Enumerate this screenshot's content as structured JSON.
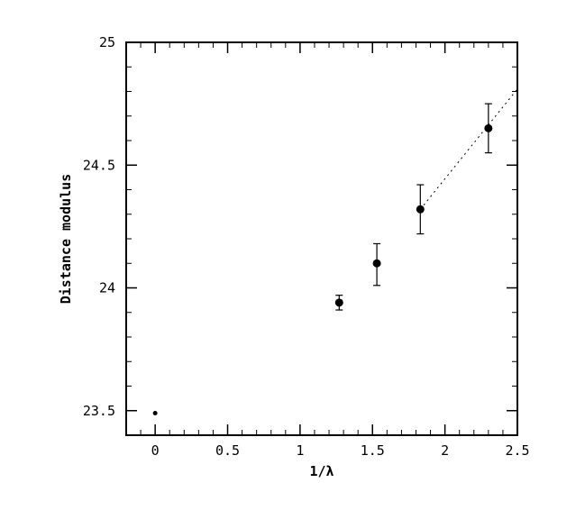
{
  "chart_data": {
    "type": "scatter",
    "title": "",
    "xlabel": "1/λ",
    "ylabel": "Distance modulus",
    "xlim": [
      -0.2,
      2.5
    ],
    "ylim": [
      23.4,
      25.0
    ],
    "xticks": [
      0,
      0.5,
      1,
      1.5,
      2,
      2.5
    ],
    "xtick_labels": [
      "0",
      "0.5",
      "1",
      "1.5",
      "2",
      "2.5"
    ],
    "yticks": [
      23.5,
      24,
      24.5,
      25
    ],
    "ytick_labels": [
      "23.5",
      "24",
      "24.5",
      "25"
    ],
    "grid": false,
    "legend": "none",
    "points": [
      {
        "x": 0.0,
        "y": 23.49,
        "err_low": 0.0,
        "err_high": 0.0,
        "marker": "small"
      },
      {
        "x": 1.27,
        "y": 23.94,
        "err_low": 0.03,
        "err_high": 0.03,
        "marker": "dot"
      },
      {
        "x": 1.53,
        "y": 24.1,
        "err_low": 0.09,
        "err_high": 0.08,
        "marker": "dot"
      },
      {
        "x": 1.83,
        "y": 24.32,
        "err_low": 0.1,
        "err_high": 0.1,
        "marker": "dot"
      },
      {
        "x": 2.3,
        "y": 24.65,
        "err_low": 0.1,
        "err_high": 0.1,
        "marker": "dot"
      }
    ],
    "fit_line": {
      "x": [
        1.83,
        2.5
      ],
      "y": [
        24.32,
        24.81
      ]
    }
  }
}
